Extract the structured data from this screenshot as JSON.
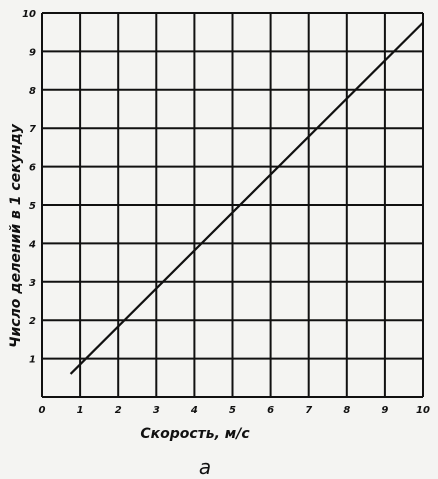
{
  "chart_data": {
    "type": "line",
    "xlabel": "Скорость, м/с",
    "ylabel": "Число делений в 1 секунду",
    "caption": "а",
    "xlim": [
      0,
      10
    ],
    "ylim": [
      0,
      10
    ],
    "xticks": [
      "0",
      "1",
      "2",
      "3",
      "4",
      "5",
      "6",
      "7",
      "8",
      "9",
      "10"
    ],
    "yticks": [
      "1",
      "2",
      "3",
      "4",
      "5",
      "6",
      "7",
      "8",
      "9",
      "10"
    ],
    "grid": true,
    "series": [
      {
        "x": [
          0.75,
          10.0
        ],
        "y": [
          0.6,
          9.75
        ]
      }
    ],
    "line_color": "#111111",
    "grid_color": "#111111"
  }
}
